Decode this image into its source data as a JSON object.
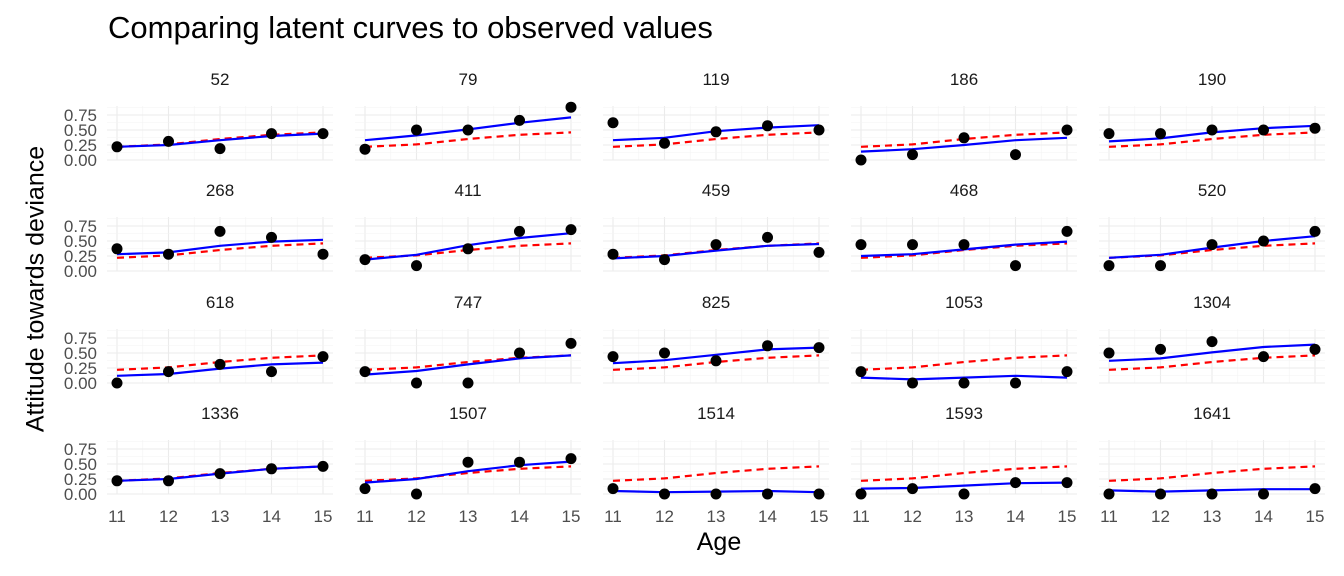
{
  "chart_data": {
    "type": "line",
    "title": "Comparing latent curves to observed values",
    "xlabel": "Age",
    "ylabel": "Attitude towards deviance",
    "x": [
      11,
      12,
      13,
      14,
      15
    ],
    "ylim": [
      0,
      0.9
    ],
    "yticks": [
      "0.00",
      "0.25",
      "0.50",
      "0.75"
    ],
    "grid": true,
    "legend": "none",
    "colors": {
      "latent": "#0000ff",
      "mean": "#ff0000",
      "observed": "#000000"
    },
    "mean_curve": [
      0.22,
      0.26,
      0.35,
      0.42,
      0.46
    ],
    "panels": [
      {
        "id": "52",
        "observed": [
          0.22,
          0.31,
          0.19,
          0.44,
          0.44
        ],
        "latent": [
          0.22,
          0.25,
          0.33,
          0.4,
          0.44
        ]
      },
      {
        "id": "79",
        "observed": [
          0.18,
          0.5,
          0.5,
          0.66,
          0.88
        ],
        "latent": [
          0.33,
          0.41,
          0.51,
          0.62,
          0.71
        ]
      },
      {
        "id": "119",
        "observed": [
          0.62,
          0.28,
          0.47,
          0.57,
          0.5
        ],
        "latent": [
          0.33,
          0.37,
          0.48,
          0.54,
          0.58
        ]
      },
      {
        "id": "186",
        "observed": [
          0.0,
          0.09,
          0.37,
          0.09,
          0.5
        ],
        "latent": [
          0.14,
          0.18,
          0.25,
          0.33,
          0.37
        ]
      },
      {
        "id": "190",
        "observed": [
          0.44,
          0.44,
          0.5,
          0.5,
          0.53
        ],
        "latent": [
          0.31,
          0.36,
          0.46,
          0.53,
          0.57
        ]
      },
      {
        "id": "268",
        "observed": [
          0.37,
          0.28,
          0.66,
          0.56,
          0.28
        ],
        "latent": [
          0.28,
          0.31,
          0.42,
          0.49,
          0.52
        ]
      },
      {
        "id": "411",
        "observed": [
          0.19,
          0.09,
          0.37,
          0.66,
          0.69
        ],
        "latent": [
          0.19,
          0.27,
          0.43,
          0.55,
          0.63
        ]
      },
      {
        "id": "459",
        "observed": [
          0.28,
          0.19,
          0.44,
          0.56,
          0.31
        ],
        "latent": [
          0.21,
          0.25,
          0.34,
          0.42,
          0.45
        ]
      },
      {
        "id": "468",
        "observed": [
          0.44,
          0.44,
          0.44,
          0.09,
          0.66
        ],
        "latent": [
          0.25,
          0.28,
          0.36,
          0.44,
          0.49
        ]
      },
      {
        "id": "520",
        "observed": [
          0.09,
          0.09,
          0.44,
          0.5,
          0.66
        ],
        "latent": [
          0.22,
          0.27,
          0.39,
          0.5,
          0.58
        ]
      },
      {
        "id": "618",
        "observed": [
          0.0,
          0.19,
          0.31,
          0.19,
          0.44
        ],
        "latent": [
          0.12,
          0.15,
          0.24,
          0.31,
          0.34
        ]
      },
      {
        "id": "747",
        "observed": [
          0.19,
          0.0,
          0.0,
          0.5,
          0.66
        ],
        "latent": [
          0.14,
          0.2,
          0.31,
          0.41,
          0.46
        ]
      },
      {
        "id": "825",
        "observed": [
          0.44,
          0.5,
          0.37,
          0.62,
          0.59
        ],
        "latent": [
          0.33,
          0.38,
          0.47,
          0.56,
          0.59
        ]
      },
      {
        "id": "1053",
        "observed": [
          0.19,
          0.0,
          0.0,
          0.0,
          0.19
        ],
        "latent": [
          0.09,
          0.06,
          0.09,
          0.12,
          0.09
        ]
      },
      {
        "id": "1304",
        "observed": [
          0.5,
          0.56,
          0.69,
          0.44,
          0.56
        ],
        "latent": [
          0.37,
          0.41,
          0.51,
          0.6,
          0.64
        ]
      },
      {
        "id": "1336",
        "observed": [
          0.22,
          0.22,
          0.34,
          0.42,
          0.46
        ],
        "latent": [
          0.22,
          0.25,
          0.34,
          0.42,
          0.46
        ]
      },
      {
        "id": "1507",
        "observed": [
          0.09,
          0.0,
          0.53,
          0.53,
          0.59
        ],
        "latent": [
          0.19,
          0.25,
          0.38,
          0.48,
          0.54
        ]
      },
      {
        "id": "1514",
        "observed": [
          0.09,
          0.0,
          0.0,
          0.0,
          0.0
        ],
        "latent": [
          0.05,
          0.03,
          0.04,
          0.05,
          0.03
        ]
      },
      {
        "id": "1593",
        "observed": [
          0.0,
          0.09,
          0.0,
          0.19,
          0.19
        ],
        "latent": [
          0.09,
          0.1,
          0.14,
          0.18,
          0.19
        ]
      },
      {
        "id": "1641",
        "observed": [
          0.0,
          0.0,
          0.0,
          0.0,
          0.09
        ],
        "latent": [
          0.06,
          0.04,
          0.06,
          0.08,
          0.08
        ]
      }
    ]
  }
}
